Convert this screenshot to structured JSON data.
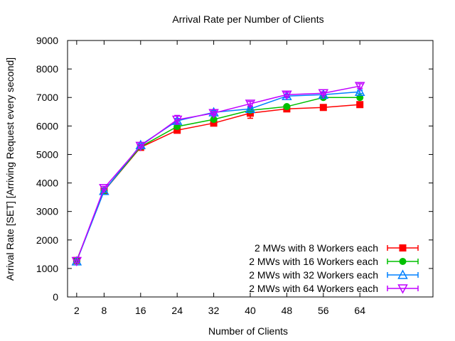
{
  "chart_data": {
    "type": "line",
    "title": "Arrival Rate per Number of Clients",
    "xlabel": "Number of Clients",
    "ylabel": "Arrival Rate [SET] [Arriving Request every second]",
    "x": [
      2,
      8,
      16,
      24,
      32,
      40,
      48,
      56,
      64
    ],
    "xlim": [
      0,
      80
    ],
    "ylim": [
      0,
      9000
    ],
    "x_ticks": [
      2,
      8,
      16,
      24,
      32,
      40,
      48,
      56,
      64
    ],
    "y_ticks": [
      0,
      1000,
      2000,
      3000,
      4000,
      5000,
      6000,
      7000,
      8000,
      9000
    ],
    "grid": false,
    "legend_position": "bottom-right",
    "series": [
      {
        "name": "2 MWs with 8 Workers each",
        "color": "#ff0000",
        "marker": "filled-square",
        "values": [
          1280,
          3720,
          5250,
          5850,
          6100,
          6450,
          6600,
          6650,
          6750
        ],
        "error": [
          40,
          60,
          50,
          60,
          60,
          180,
          100,
          50,
          60
        ]
      },
      {
        "name": "2 MWs with 16 Workers each",
        "color": "#00c000",
        "marker": "filled-circle",
        "values": [
          1270,
          3730,
          5270,
          5980,
          6230,
          6550,
          6680,
          7000,
          7000
        ],
        "error": [
          40,
          50,
          50,
          60,
          60,
          60,
          60,
          60,
          60
        ]
      },
      {
        "name": "2 MWs with 32 Workers each",
        "color": "#0080ff",
        "marker": "open-triangle-up",
        "values": [
          1250,
          3720,
          5330,
          6180,
          6480,
          6600,
          7050,
          7100,
          7200
        ],
        "error": [
          40,
          50,
          50,
          80,
          60,
          60,
          60,
          60,
          60
        ]
      },
      {
        "name": "2 MWs with 64 Workers each",
        "color": "#c000ff",
        "marker": "open-triangle-down",
        "values": [
          1260,
          3820,
          5300,
          6220,
          6450,
          6780,
          7100,
          7150,
          7400
        ],
        "error": [
          40,
          60,
          50,
          150,
          60,
          80,
          80,
          50,
          80
        ]
      }
    ]
  }
}
